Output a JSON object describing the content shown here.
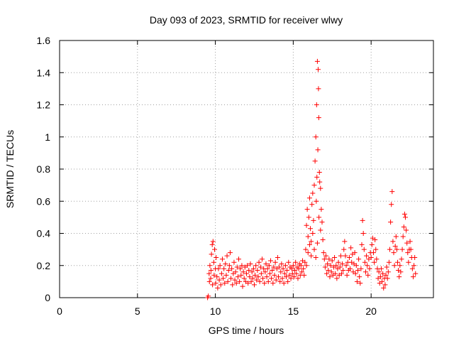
{
  "chart_data": {
    "type": "scatter",
    "title": "Day 093 of 2023, SRMTID for receiver wlwy",
    "xlabel": "GPS time / hours",
    "ylabel": "SRMTID / TECUs",
    "xlim": [
      0,
      24
    ],
    "ylim": [
      0,
      1.6
    ],
    "xticks": [
      0,
      5,
      10,
      15,
      20
    ],
    "xtick_labels": [
      "0",
      "5",
      "10",
      "15",
      "20"
    ],
    "yticks": [
      0,
      0.2,
      0.4,
      0.6,
      0.8,
      1.0,
      1.2,
      1.4,
      1.6
    ],
    "ytick_labels": [
      "0",
      "0.2",
      "0.4",
      "0.6",
      "0.8",
      "1",
      "1.2",
      "1.4",
      "1.6"
    ],
    "grid": true,
    "marker": "plus",
    "color": "#ff0000",
    "series": [
      {
        "name": "wlwy",
        "points": [
          [
            9.5,
            0.0
          ],
          [
            9.55,
            0.01
          ],
          [
            9.6,
            0.15
          ],
          [
            9.65,
            0.2
          ],
          [
            9.7,
            0.12
          ],
          [
            9.75,
            0.27
          ],
          [
            9.8,
            0.33
          ],
          [
            9.85,
            0.35
          ],
          [
            9.9,
            0.22
          ],
          [
            9.95,
            0.3
          ],
          [
            10.0,
            0.18
          ],
          [
            10.05,
            0.25
          ],
          [
            9.62,
            0.1
          ],
          [
            9.72,
            0.17
          ],
          [
            9.82,
            0.08
          ],
          [
            9.92,
            0.14
          ],
          [
            10.02,
            0.09
          ],
          [
            10.1,
            0.13
          ],
          [
            10.15,
            0.06
          ],
          [
            10.2,
            0.18
          ],
          [
            10.25,
            0.11
          ],
          [
            10.3,
            0.2
          ],
          [
            10.35,
            0.08
          ],
          [
            10.4,
            0.15
          ],
          [
            10.45,
            0.24
          ],
          [
            10.5,
            0.12
          ],
          [
            10.55,
            0.18
          ],
          [
            10.6,
            0.09
          ],
          [
            10.65,
            0.21
          ],
          [
            10.7,
            0.14
          ],
          [
            10.75,
            0.26
          ],
          [
            10.8,
            0.1
          ],
          [
            10.85,
            0.17
          ],
          [
            10.9,
            0.2
          ],
          [
            10.95,
            0.28
          ],
          [
            11.0,
            0.12
          ],
          [
            11.05,
            0.18
          ],
          [
            11.1,
            0.08
          ],
          [
            11.15,
            0.15
          ],
          [
            11.2,
            0.22
          ],
          [
            11.25,
            0.11
          ],
          [
            11.3,
            0.16
          ],
          [
            11.35,
            0.09
          ],
          [
            11.4,
            0.19
          ],
          [
            11.45,
            0.13
          ],
          [
            11.5,
            0.24
          ],
          [
            11.55,
            0.1
          ],
          [
            11.6,
            0.18
          ],
          [
            11.65,
            0.14
          ],
          [
            11.7,
            0.2
          ],
          [
            11.75,
            0.07
          ],
          [
            11.8,
            0.16
          ],
          [
            11.85,
            0.12
          ],
          [
            11.9,
            0.19
          ],
          [
            11.95,
            0.1
          ],
          [
            12.0,
            0.15
          ],
          [
            12.05,
            0.2
          ],
          [
            12.1,
            0.09
          ],
          [
            12.15,
            0.17
          ],
          [
            12.2,
            0.13
          ],
          [
            12.25,
            0.21
          ],
          [
            12.3,
            0.1
          ],
          [
            12.35,
            0.16
          ],
          [
            12.4,
            0.12
          ],
          [
            12.45,
            0.18
          ],
          [
            12.5,
            0.08
          ],
          [
            12.55,
            0.14
          ],
          [
            12.6,
            0.2
          ],
          [
            12.65,
            0.11
          ],
          [
            12.7,
            0.17
          ],
          [
            12.75,
            0.13
          ],
          [
            12.8,
            0.22
          ],
          [
            12.85,
            0.1
          ],
          [
            12.9,
            0.19
          ],
          [
            12.95,
            0.15
          ],
          [
            13.0,
            0.24
          ],
          [
            13.05,
            0.12
          ],
          [
            13.1,
            0.18
          ],
          [
            13.15,
            0.09
          ],
          [
            13.2,
            0.16
          ],
          [
            13.25,
            0.21
          ],
          [
            13.3,
            0.13
          ],
          [
            13.35,
            0.18
          ],
          [
            13.4,
            0.1
          ],
          [
            13.45,
            0.2
          ],
          [
            13.5,
            0.15
          ],
          [
            13.55,
            0.23
          ],
          [
            13.6,
            0.12
          ],
          [
            13.65,
            0.17
          ],
          [
            13.7,
            0.09
          ],
          [
            13.75,
            0.19
          ],
          [
            13.8,
            0.14
          ],
          [
            13.85,
            0.22
          ],
          [
            13.9,
            0.11
          ],
          [
            13.95,
            0.18
          ],
          [
            14.0,
            0.25
          ],
          [
            14.05,
            0.13
          ],
          [
            14.1,
            0.19
          ],
          [
            14.15,
            0.1
          ],
          [
            14.2,
            0.16
          ],
          [
            14.25,
            0.21
          ],
          [
            14.3,
            0.12
          ],
          [
            14.35,
            0.18
          ],
          [
            14.4,
            0.09
          ],
          [
            14.45,
            0.15
          ],
          [
            14.5,
            0.2
          ],
          [
            14.55,
            0.13
          ],
          [
            14.6,
            0.17
          ],
          [
            14.65,
            0.1
          ],
          [
            14.7,
            0.22
          ],
          [
            14.75,
            0.14
          ],
          [
            14.8,
            0.19
          ],
          [
            14.85,
            0.12
          ],
          [
            14.9,
            0.18
          ],
          [
            14.95,
            0.15
          ],
          [
            15.0,
            0.2
          ],
          [
            15.05,
            0.13
          ],
          [
            15.1,
            0.17
          ],
          [
            15.15,
            0.22
          ],
          [
            15.2,
            0.15
          ],
          [
            15.25,
            0.19
          ],
          [
            15.3,
            0.12
          ],
          [
            15.35,
            0.18
          ],
          [
            15.4,
            0.21
          ],
          [
            15.45,
            0.14
          ],
          [
            15.5,
            0.2
          ],
          [
            15.55,
            0.16
          ],
          [
            15.6,
            0.23
          ],
          [
            15.65,
            0.18
          ],
          [
            15.7,
            0.14
          ],
          [
            15.75,
            0.22
          ],
          [
            15.8,
            0.3
          ],
          [
            15.85,
            0.45
          ],
          [
            15.9,
            0.55
          ],
          [
            15.95,
            0.38
          ],
          [
            16.0,
            0.5
          ],
          [
            16.05,
            0.62
          ],
          [
            16.1,
            0.43
          ],
          [
            16.15,
            0.35
          ],
          [
            16.2,
            0.58
          ],
          [
            16.25,
            0.65
          ],
          [
            16.3,
            0.48
          ],
          [
            16.35,
            0.7
          ],
          [
            16.4,
            0.85
          ],
          [
            16.45,
            1.0
          ],
          [
            16.5,
            1.2
          ],
          [
            16.55,
            1.47
          ],
          [
            16.6,
            1.42
          ],
          [
            16.62,
            1.3
          ],
          [
            16.64,
            1.12
          ],
          [
            16.58,
            0.92
          ],
          [
            16.52,
            0.75
          ],
          [
            16.48,
            0.6
          ],
          [
            16.68,
            0.78
          ],
          [
            16.7,
            0.72
          ],
          [
            16.75,
            0.68
          ],
          [
            16.8,
            0.55
          ],
          [
            16.85,
            0.47
          ],
          [
            16.9,
            0.36
          ],
          [
            16.95,
            0.28
          ],
          [
            15.85,
            0.2
          ],
          [
            15.95,
            0.28
          ],
          [
            16.05,
            0.33
          ],
          [
            16.15,
            0.26
          ],
          [
            16.25,
            0.4
          ],
          [
            16.35,
            0.3
          ],
          [
            16.45,
            0.25
          ],
          [
            16.55,
            0.34
          ],
          [
            16.65,
            0.5
          ],
          [
            16.75,
            0.42
          ],
          [
            17.0,
            0.24
          ],
          [
            17.05,
            0.19
          ],
          [
            17.1,
            0.26
          ],
          [
            17.15,
            0.15
          ],
          [
            17.2,
            0.21
          ],
          [
            17.25,
            0.17
          ],
          [
            17.3,
            0.24
          ],
          [
            17.35,
            0.13
          ],
          [
            17.4,
            0.2
          ],
          [
            17.45,
            0.16
          ],
          [
            17.5,
            0.23
          ],
          [
            17.55,
            0.14
          ],
          [
            17.6,
            0.19
          ],
          [
            17.65,
            0.25
          ],
          [
            17.7,
            0.15
          ],
          [
            17.75,
            0.2
          ],
          [
            17.8,
            0.12
          ],
          [
            17.85,
            0.18
          ],
          [
            17.9,
            0.22
          ],
          [
            17.95,
            0.14
          ],
          [
            18.0,
            0.19
          ],
          [
            18.05,
            0.26
          ],
          [
            18.1,
            0.15
          ],
          [
            18.15,
            0.21
          ],
          [
            18.2,
            0.17
          ],
          [
            18.25,
            0.3
          ],
          [
            18.3,
            0.35
          ],
          [
            18.35,
            0.26
          ],
          [
            18.4,
            0.2
          ],
          [
            18.45,
            0.14
          ],
          [
            18.5,
            0.22
          ],
          [
            18.55,
            0.17
          ],
          [
            18.6,
            0.25
          ],
          [
            18.65,
            0.18
          ],
          [
            18.7,
            0.31
          ],
          [
            18.75,
            0.22
          ],
          [
            18.8,
            0.27
          ],
          [
            18.85,
            0.16
          ],
          [
            18.9,
            0.21
          ],
          [
            18.95,
            0.28
          ],
          [
            19.0,
            0.15
          ],
          [
            19.05,
            0.2
          ],
          [
            19.1,
            0.1
          ],
          [
            19.15,
            0.17
          ],
          [
            19.2,
            0.24
          ],
          [
            19.25,
            0.13
          ],
          [
            19.3,
            0.09
          ],
          [
            19.35,
            0.18
          ],
          [
            19.4,
            0.33
          ],
          [
            19.45,
            0.48
          ],
          [
            19.5,
            0.4
          ],
          [
            19.55,
            0.3
          ],
          [
            19.6,
            0.22
          ],
          [
            19.65,
            0.16
          ],
          [
            19.7,
            0.26
          ],
          [
            19.75,
            0.2
          ],
          [
            19.8,
            0.14
          ],
          [
            19.85,
            0.24
          ],
          [
            19.9,
            0.18
          ],
          [
            19.95,
            0.28
          ],
          [
            20.0,
            0.25
          ],
          [
            20.05,
            0.33
          ],
          [
            20.1,
            0.37
          ],
          [
            20.15,
            0.28
          ],
          [
            20.2,
            0.22
          ],
          [
            20.25,
            0.36
          ],
          [
            20.3,
            0.3
          ],
          [
            20.35,
            0.24
          ],
          [
            20.4,
            0.18
          ],
          [
            20.45,
            0.12
          ],
          [
            20.5,
            0.16
          ],
          [
            20.55,
            0.09
          ],
          [
            20.6,
            0.13
          ],
          [
            20.65,
            0.18
          ],
          [
            20.7,
            0.1
          ],
          [
            20.75,
            0.15
          ],
          [
            20.8,
            0.06
          ],
          [
            20.85,
            0.12
          ],
          [
            20.9,
            0.08
          ],
          [
            20.95,
            0.14
          ],
          [
            21.0,
            0.19
          ],
          [
            21.05,
            0.12
          ],
          [
            21.1,
            0.16
          ],
          [
            21.15,
            0.22
          ],
          [
            21.2,
            0.3
          ],
          [
            21.25,
            0.47
          ],
          [
            21.3,
            0.58
          ],
          [
            21.35,
            0.66
          ],
          [
            21.4,
            0.35
          ],
          [
            21.45,
            0.28
          ],
          [
            21.5,
            0.2
          ],
          [
            21.55,
            0.32
          ],
          [
            21.6,
            0.38
          ],
          [
            21.65,
            0.3
          ],
          [
            21.7,
            0.22
          ],
          [
            21.75,
            0.17
          ],
          [
            21.8,
            0.13
          ],
          [
            21.85,
            0.2
          ],
          [
            21.9,
            0.16
          ],
          [
            21.95,
            0.24
          ],
          [
            22.0,
            0.3
          ],
          [
            22.05,
            0.38
          ],
          [
            22.1,
            0.44
          ],
          [
            22.15,
            0.52
          ],
          [
            22.2,
            0.5
          ],
          [
            22.25,
            0.42
          ],
          [
            22.3,
            0.34
          ],
          [
            22.35,
            0.28
          ],
          [
            22.4,
            0.22
          ],
          [
            22.45,
            0.3
          ],
          [
            22.5,
            0.35
          ],
          [
            22.55,
            0.3
          ],
          [
            22.6,
            0.25
          ],
          [
            22.65,
            0.18
          ],
          [
            22.7,
            0.13
          ],
          [
            22.75,
            0.2
          ],
          [
            22.8,
            0.25
          ],
          [
            22.85,
            0.15
          ]
        ]
      }
    ]
  }
}
